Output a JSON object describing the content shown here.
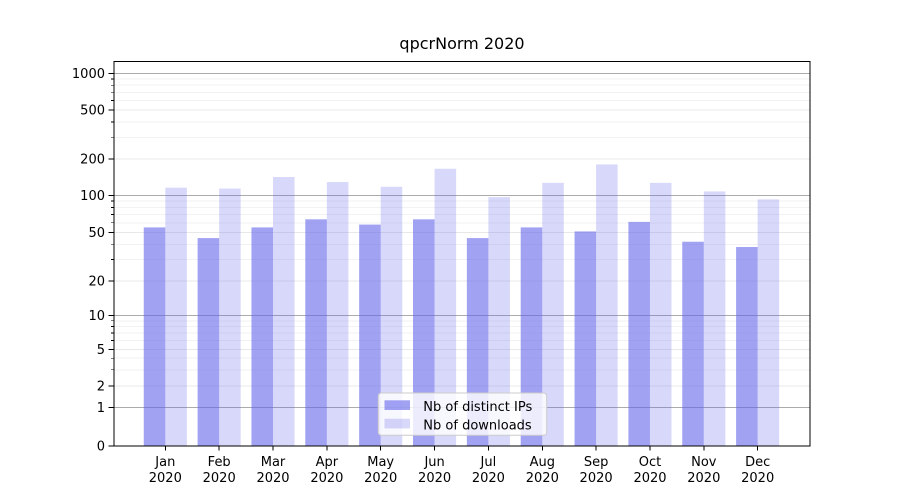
{
  "figure": {
    "background": "#ffffff"
  },
  "chart_data": {
    "type": "bar",
    "title": "qpcrNorm 2020",
    "x_tick_labels": [
      [
        "Jan",
        "2020"
      ],
      [
        "Feb",
        "2020"
      ],
      [
        "Mar",
        "2020"
      ],
      [
        "Apr",
        "2020"
      ],
      [
        "May",
        "2020"
      ],
      [
        "Jun",
        "2020"
      ],
      [
        "Jul",
        "2020"
      ],
      [
        "Aug",
        "2020"
      ],
      [
        "Sep",
        "2020"
      ],
      [
        "Oct",
        "2020"
      ],
      [
        "Nov",
        "2020"
      ],
      [
        "Dec",
        "2020"
      ]
    ],
    "series": [
      {
        "name": "Nb of distinct IPs",
        "base_color": "#6464eb",
        "opacity": 0.6,
        "rendered_color": "#a3a3f3",
        "values": [
          55,
          45,
          55,
          64,
          58,
          64,
          45,
          55,
          51,
          61,
          42,
          38
        ]
      },
      {
        "name": "Nb of downloads",
        "base_color": "#6464eb",
        "opacity": 0.25,
        "rendered_color": "#d8d8f7",
        "values": [
          116,
          114,
          142,
          129,
          118,
          166,
          97,
          127,
          180,
          127,
          108,
          93
        ]
      }
    ],
    "y_axis": {
      "scale": "symlog",
      "tick_values": [
        0,
        1,
        2,
        5,
        10,
        20,
        50,
        100,
        200,
        500,
        1000
      ],
      "tick_labels": [
        "0",
        "1",
        "2",
        "5",
        "10",
        "20",
        "50",
        "100",
        "200",
        "500",
        "1000"
      ],
      "range_top": 1000
    },
    "x_axis": {
      "year": "2020",
      "months": [
        "Jan",
        "Feb",
        "Mar",
        "Apr",
        "May",
        "Jun",
        "Jul",
        "Aug",
        "Sep",
        "Oct",
        "Nov",
        "Dec"
      ]
    },
    "legend": {
      "position": "lower center",
      "entries": [
        "Nb of distinct IPs",
        "Nb of downloads"
      ]
    },
    "grid": {
      "on": true,
      "pow10_line_color": "#ababab",
      "major_line_color": "#e8e8e8",
      "minor_line_color": "#f2f2f2"
    },
    "axis_color": "#000000",
    "text_color": "#000000"
  }
}
